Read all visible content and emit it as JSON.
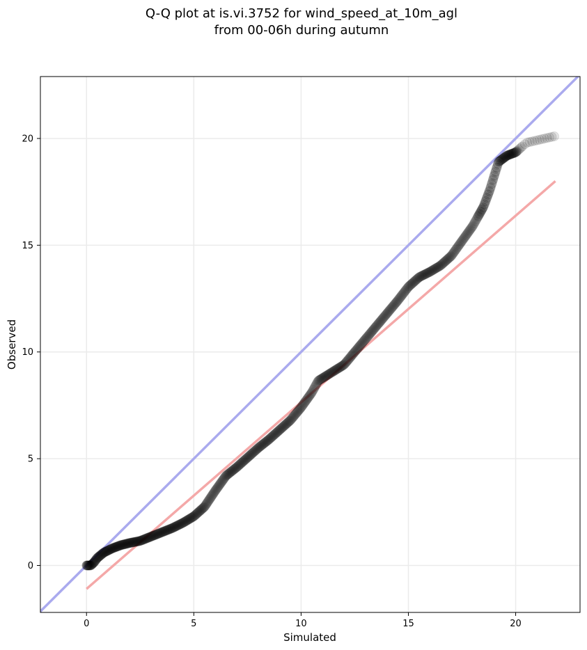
{
  "chart_data": {
    "type": "scatter",
    "title": "Q-Q plot at is.vi.3752 for wind_speed_at_10m_agl",
    "subtitle": "from 00-06h during autumn",
    "xlabel": "Simulated",
    "ylabel": "Observed",
    "xlim": [
      -2.15,
      23
    ],
    "ylim": [
      -2.2,
      22.9
    ],
    "xticks": [
      0,
      5,
      10,
      15,
      20
    ],
    "yticks": [
      0,
      5,
      10,
      15,
      20
    ],
    "grid": true,
    "colors": {
      "points": "#000000",
      "identity_line": "#aaaaee",
      "fit_line": "#f4a8a8",
      "grid": "#ebebeb"
    },
    "reference_lines": [
      {
        "kind": "identity",
        "from": [
          -2.15,
          -2.15
        ],
        "to": [
          23,
          23
        ]
      },
      {
        "kind": "fit",
        "from": [
          0,
          -1.1
        ],
        "to": [
          21.85,
          18.0
        ]
      }
    ],
    "quantile_curve": [
      [
        0.0,
        0.0
      ],
      [
        0.2,
        0.0
      ],
      [
        0.35,
        0.15
      ],
      [
        0.5,
        0.35
      ],
      [
        0.8,
        0.6
      ],
      [
        1.2,
        0.8
      ],
      [
        1.6,
        0.95
      ],
      [
        2.0,
        1.05
      ],
      [
        2.5,
        1.15
      ],
      [
        3.0,
        1.35
      ],
      [
        3.5,
        1.55
      ],
      [
        4.0,
        1.75
      ],
      [
        4.5,
        2.0
      ],
      [
        5.0,
        2.3
      ],
      [
        5.5,
        2.75
      ],
      [
        6.0,
        3.5
      ],
      [
        6.5,
        4.2
      ],
      [
        7.0,
        4.6
      ],
      [
        7.5,
        5.05
      ],
      [
        8.0,
        5.5
      ],
      [
        8.5,
        5.9
      ],
      [
        9.0,
        6.35
      ],
      [
        9.5,
        6.8
      ],
      [
        10.0,
        7.4
      ],
      [
        10.5,
        8.1
      ],
      [
        10.8,
        8.65
      ],
      [
        11.2,
        8.9
      ],
      [
        11.6,
        9.15
      ],
      [
        12.0,
        9.4
      ],
      [
        12.5,
        10.0
      ],
      [
        13.0,
        10.6
      ],
      [
        13.5,
        11.2
      ],
      [
        14.0,
        11.8
      ],
      [
        14.5,
        12.4
      ],
      [
        15.0,
        13.05
      ],
      [
        15.5,
        13.5
      ],
      [
        16.0,
        13.75
      ],
      [
        16.5,
        14.05
      ],
      [
        17.0,
        14.5
      ],
      [
        17.5,
        15.2
      ],
      [
        18.0,
        15.9
      ],
      [
        18.5,
        16.8
      ],
      [
        18.8,
        17.6
      ],
      [
        19.2,
        18.9
      ],
      [
        19.6,
        19.2
      ],
      [
        20.0,
        19.35
      ],
      [
        20.5,
        19.8
      ],
      [
        21.8,
        20.1
      ]
    ]
  }
}
